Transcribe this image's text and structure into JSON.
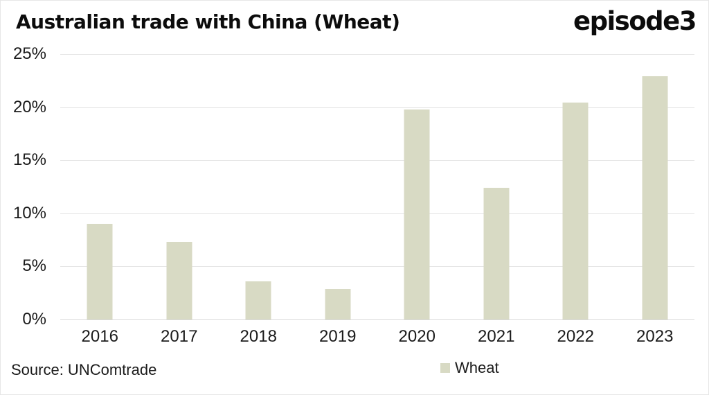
{
  "header": {
    "title": "Australian trade with China (Wheat)",
    "logo": "episode3"
  },
  "footer": {
    "source": "Source: UNComtrade"
  },
  "legend": {
    "label": "Wheat",
    "swatch_color": "#d8dac4"
  },
  "colors": {
    "bar": "#d8dac4",
    "gridline": "#e4e4e4",
    "zero_line": "#d8d8d8",
    "text": "#1b1b1b"
  },
  "chart_data": {
    "type": "bar",
    "title": "Australian trade with China (Wheat)",
    "categories": [
      "2016",
      "2017",
      "2018",
      "2019",
      "2020",
      "2021",
      "2022",
      "2023"
    ],
    "series": [
      {
        "name": "Wheat",
        "values": [
          9.0,
          7.3,
          3.6,
          2.9,
          19.8,
          12.4,
          20.4,
          22.9
        ]
      }
    ],
    "unit": "%",
    "xlabel": "",
    "ylabel": "",
    "ylim": [
      0,
      25
    ],
    "yticks": [
      "25%",
      "20%",
      "15%",
      "10%",
      "5%",
      "0%"
    ],
    "ytick_values": [
      25,
      20,
      15,
      10,
      5,
      0
    ],
    "grid": true,
    "legend_position": "bottom",
    "source": "Source: UNComtrade"
  }
}
